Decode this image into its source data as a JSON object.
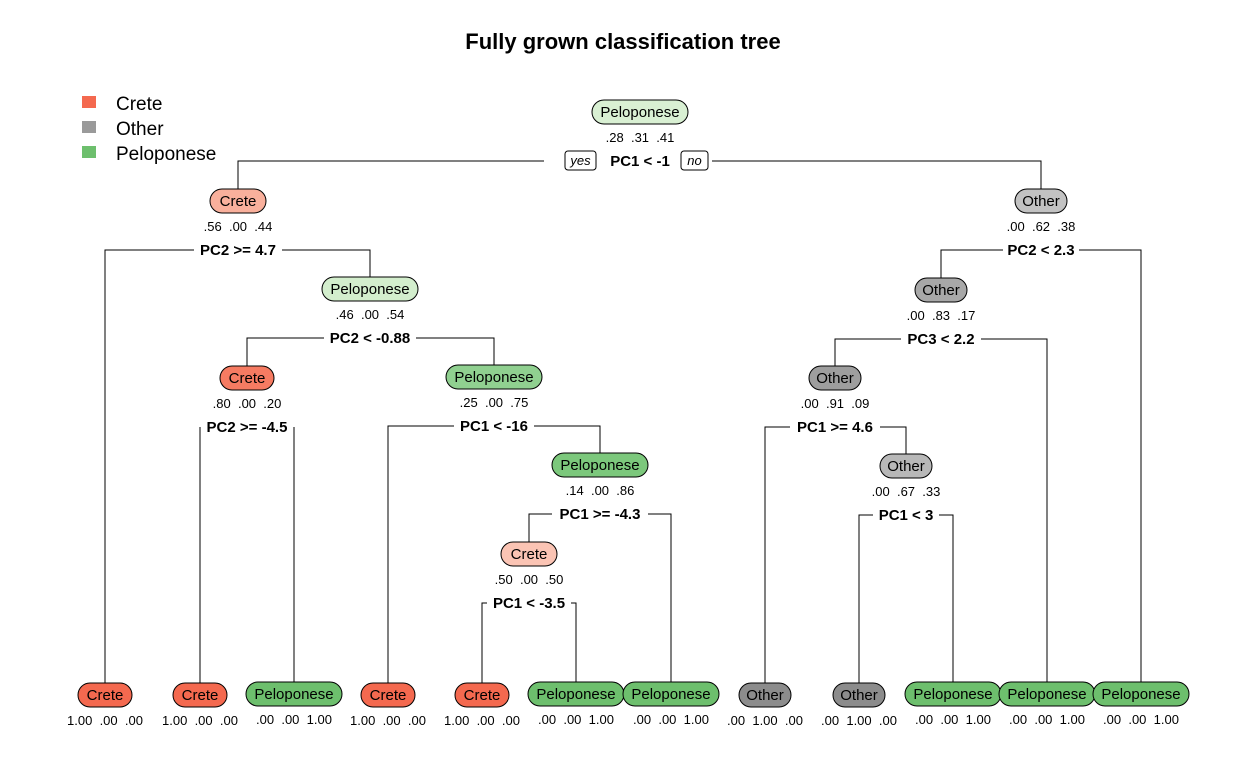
{
  "title": "Fully grown classification tree",
  "legend": [
    {
      "label": "Crete",
      "color": "#f4694f"
    },
    {
      "label": "Other",
      "color": "#9a9a9a"
    },
    {
      "label": "Peloponese",
      "color": "#6dbf6d"
    }
  ],
  "branch_labels": {
    "yes": "yes",
    "no": "no"
  },
  "nodes": [
    {
      "id": "n1",
      "label": "Peloponese",
      "probs": ".28  .31  .41",
      "split": "PC1 < -1",
      "fill": "#d9f0d3"
    },
    {
      "id": "n2",
      "label": "Crete",
      "probs": ".56  .00  .44",
      "split": "PC2 >= 4.7",
      "fill": "#f9b09c"
    },
    {
      "id": "n3",
      "label": "Other",
      "probs": ".00  .62  .38",
      "split": "PC2 < 2.3",
      "fill": "#c2c2c2"
    },
    {
      "id": "n4",
      "label": "Peloponese",
      "probs": ".46  .00  .54",
      "split": "PC2 < -0.88",
      "fill": "#d3eecd"
    },
    {
      "id": "n5",
      "label": "Crete",
      "probs": ".80  .00  .20",
      "split": "PC2 >= -4.5",
      "fill": "#f67b62"
    },
    {
      "id": "n6",
      "label": "Peloponese",
      "probs": ".25  .00  .75",
      "split": "PC1 < -16",
      "fill": "#90d090"
    },
    {
      "id": "n7",
      "label": "Peloponese",
      "probs": ".14  .00  .86",
      "split": "PC1 >= -4.3",
      "fill": "#7cc87c"
    },
    {
      "id": "n8",
      "label": "Crete",
      "probs": ".50  .00  .50",
      "split": "PC1 < -3.5",
      "fill": "#fbc4b4"
    },
    {
      "id": "n9",
      "label": "Other",
      "probs": ".00  .83  .17",
      "split": "PC3 < 2.2",
      "fill": "#a8a8a8"
    },
    {
      "id": "n10",
      "label": "Other",
      "probs": ".00  .91  .09",
      "split": "PC1 >= 4.6",
      "fill": "#9e9e9e"
    },
    {
      "id": "n11",
      "label": "Other",
      "probs": ".00  .67  .33",
      "split": "PC1 < 3",
      "fill": "#b8b8b8"
    },
    {
      "id": "l1",
      "label": "Crete",
      "probs": "1.00  .00  .00",
      "split": "",
      "fill": "#f4694f"
    },
    {
      "id": "l2",
      "label": "Crete",
      "probs": "1.00  .00  .00",
      "split": "",
      "fill": "#f4694f"
    },
    {
      "id": "l3",
      "label": "Peloponese",
      "probs": ".00  .00  1.00",
      "split": "",
      "fill": "#6dbf6d"
    },
    {
      "id": "l4",
      "label": "Crete",
      "probs": "1.00  .00  .00",
      "split": "",
      "fill": "#f4694f"
    },
    {
      "id": "l5",
      "label": "Crete",
      "probs": "1.00  .00  .00",
      "split": "",
      "fill": "#f4694f"
    },
    {
      "id": "l6",
      "label": "Peloponese",
      "probs": ".00  .00  1.00",
      "split": "",
      "fill": "#6dbf6d"
    },
    {
      "id": "l7",
      "label": "Peloponese",
      "probs": ".00  .00  1.00",
      "split": "",
      "fill": "#6dbf6d"
    },
    {
      "id": "l8",
      "label": "Other",
      "probs": ".00  1.00  .00",
      "split": "",
      "fill": "#8c8c8c"
    },
    {
      "id": "l9",
      "label": "Other",
      "probs": ".00  1.00  .00",
      "split": "",
      "fill": "#8c8c8c"
    },
    {
      "id": "l10",
      "label": "Peloponese",
      "probs": ".00  .00  1.00",
      "split": "",
      "fill": "#6dbf6d"
    },
    {
      "id": "l11",
      "label": "Peloponese",
      "probs": ".00  .00  1.00",
      "split": "",
      "fill": "#6dbf6d"
    },
    {
      "id": "l12",
      "label": "Peloponese",
      "probs": ".00  .00  1.00",
      "split": "",
      "fill": "#6dbf6d"
    }
  ],
  "edges": [
    {
      "from": "n1",
      "left": "n2",
      "right": "n3"
    },
    {
      "from": "n2",
      "left": "l1",
      "right": "n4"
    },
    {
      "from": "n4",
      "left": "n5",
      "right": "n6"
    },
    {
      "from": "n5",
      "left": "l2",
      "right": "l3"
    },
    {
      "from": "n6",
      "left": "l4",
      "right": "n7"
    },
    {
      "from": "n7",
      "left": "n8",
      "right": "l7"
    },
    {
      "from": "n8",
      "left": "l5",
      "right": "l6"
    },
    {
      "from": "n3",
      "left": "n9",
      "right": "l12"
    },
    {
      "from": "n9",
      "left": "n10",
      "right": "l11"
    },
    {
      "from": "n10",
      "left": "l8",
      "right": "n11"
    },
    {
      "from": "n11",
      "left": "l9",
      "right": "l10"
    }
  ]
}
